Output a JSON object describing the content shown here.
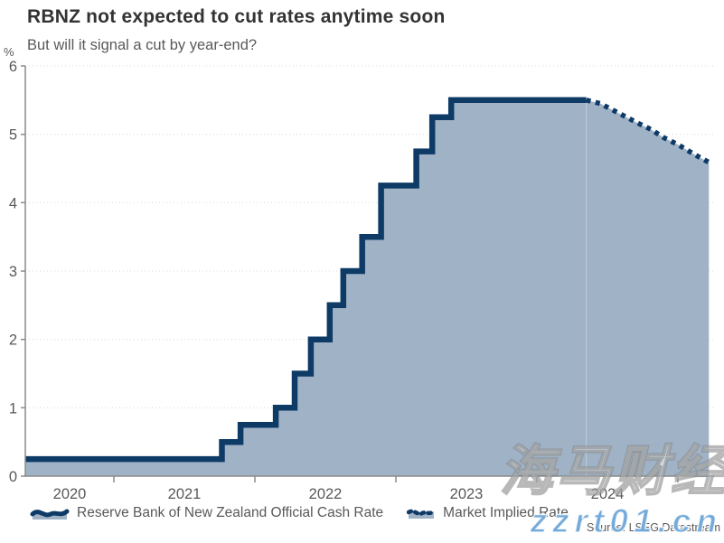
{
  "header": {
    "title": "RBNZ not expected to cut rates anytime soon",
    "subtitle": "But will it signal a cut by year-end?"
  },
  "legend": {
    "items": [
      {
        "label": "Reserve Bank of New Zealand Official Cash Rate",
        "style": "solid-step-line"
      },
      {
        "label": "Market Implied Rate",
        "style": "dotted-line"
      }
    ]
  },
  "source": "Source: LSEG Datastream",
  "watermarks": {
    "cjk": "海马财经",
    "latin": "zzrt01.cn"
  },
  "colors": {
    "line": "#0e3a66",
    "fill": "#9fb2c6",
    "axis": "#8a8a8a",
    "grid": "#d8d8d8",
    "title": "#333333",
    "text": "#595959",
    "watermark_blue": "#74aad9"
  },
  "chart_data": {
    "type": "area",
    "title": "RBNZ not expected to cut rates anytime soon",
    "subtitle": "But will it signal a cut by year-end?",
    "xlabel": "",
    "ylabel": "%",
    "ylim": [
      0,
      6
    ],
    "y_ticks": [
      0,
      1,
      2,
      3,
      4,
      5,
      6
    ],
    "x_ticks": [
      2020,
      2021,
      2022,
      2023,
      2024
    ],
    "x_range": [
      2020.37,
      2025.22
    ],
    "grid": "horizontal-dotted",
    "legend_position": "bottom",
    "series": [
      {
        "name": "Reserve Bank of New Zealand Official Cash Rate",
        "type": "step-line",
        "line_style": "solid",
        "points": [
          [
            2020.37,
            0.25
          ],
          [
            2021.766,
            0.5
          ],
          [
            2021.898,
            0.75
          ],
          [
            2022.148,
            1.0
          ],
          [
            2022.282,
            1.5
          ],
          [
            2022.397,
            2.0
          ],
          [
            2022.531,
            2.5
          ],
          [
            2022.627,
            3.0
          ],
          [
            2022.761,
            3.5
          ],
          [
            2022.895,
            4.25
          ],
          [
            2023.145,
            4.75
          ],
          [
            2023.258,
            5.25
          ],
          [
            2023.392,
            5.5
          ]
        ],
        "end_x": 2024.35
      },
      {
        "name": "Market Implied Rate",
        "type": "line",
        "line_style": "dotted",
        "points": [
          [
            2024.35,
            5.5
          ],
          [
            2024.45,
            5.45
          ],
          [
            2024.58,
            5.31
          ],
          [
            2024.7,
            5.18
          ],
          [
            2024.81,
            5.07
          ],
          [
            2024.9,
            4.95
          ],
          [
            2025.0,
            4.85
          ],
          [
            2025.13,
            4.69
          ],
          [
            2025.22,
            4.59
          ]
        ]
      }
    ]
  }
}
